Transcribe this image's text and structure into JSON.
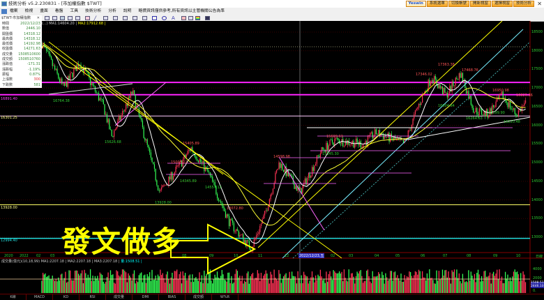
{
  "window": {
    "title": "技術分析 v5.2.230831 - [市加權指數 $TWT]",
    "close": "✕"
  },
  "top_buttons": [
    "Yeswin",
    "系統選單",
    "切換帳號",
    "開新視窗",
    "選擇視窗",
    "技術分析"
  ],
  "menu": [
    "檔案",
    "檢視",
    "畫面",
    "看盤",
    "工具",
    "技術分析",
    "分析",
    "說明",
    "略價資訊僅供參考,所有資訊以主管機關公告為準"
  ],
  "panel_tab": {
    "label": "$TWT-市加權指數",
    "close": "✕"
  },
  "info": [
    {
      "label": "時間",
      "value": "2022/12/23"
    },
    {
      "label": "數值",
      "value": "2446.10"
    },
    {
      "label": "開盤價",
      "value": "14318.12"
    },
    {
      "label": "最高價",
      "value": "14318.12"
    },
    {
      "label": "最低價",
      "value": "14192.98"
    },
    {
      "label": "收盤價",
      "value": "14271.63"
    },
    {
      "label": "成交量",
      "value": "1508510600"
    },
    {
      "label": "成交額",
      "value": "1508510760"
    },
    {
      "label": "漲跌值",
      "value": "-171.31"
    },
    {
      "label": "漲跌幅",
      "value": "-1.19%"
    },
    {
      "label": "振幅",
      "value": "0.87%"
    },
    {
      "label": "上漲數",
      "value": "300"
    },
    {
      "label": "下跌數",
      "value": "581"
    }
  ],
  "legend": {
    "prefix": "(...)",
    "ma1": "MA1:14604.20 |",
    "ma2": "MA2:17912.68 |"
  },
  "annotation_text": "發文做多",
  "price_axis": [
    "18500",
    "18000",
    "17500",
    "17000",
    "16500",
    "16000",
    "15500",
    "15000",
    "14500",
    "14000",
    "13500",
    "13000"
  ],
  "level_labels": [
    "16891.40",
    "16301.25",
    "13928.00",
    "12994.40"
  ],
  "x_axis": [
    "2020",
    "2022",
    "02",
    "03",
    "08",
    "09",
    "10",
    "11",
    "12",
    "02",
    "03",
    "04",
    "05",
    "06",
    "07",
    "08",
    "09",
    "10",
    "日線"
  ],
  "cursor_date": "2022/12/23,五",
  "price_labels": [
    "16764.38",
    "15626.68",
    "15405.89",
    "15005.22",
    "14345.89",
    "14557.12",
    "13928.00",
    "13072.80",
    "14598.98",
    "15609.63",
    "15345.30",
    "17346.02",
    "17363.38",
    "17468.76",
    "16950.98",
    "16825.86",
    "16264.63",
    "16199.90",
    "16220.48",
    "16004.84"
  ],
  "volume": {
    "legend": "成交量(億元)(10,18,99) MA1:2207.18 | MA2:2207.18 | MA3:2207.18 |",
    "qty": "量:1508.51 |",
    "axis": [
      "4000",
      "2000",
      "0."
    ],
    "box": "1508.51 2446.10"
  },
  "bottom_tabs": [
    "K線",
    "MACD",
    "KD",
    "RSI",
    "成交量",
    "DMI",
    "BIAS",
    "成交額",
    "W%R"
  ],
  "colors": {
    "up": "#ff3355",
    "down": "#33ff55",
    "ma_short": "#ffffff",
    "ma_long": "#ffff33",
    "level_magenta": "#ff22ff",
    "level_cyan": "#22dddd",
    "level_yellow": "#ffff66"
  },
  "chart_data": {
    "type": "candlestick",
    "ylim": [
      12600,
      18700
    ],
    "approx_price_path": [
      [
        "2022-02-04",
        18200
      ],
      [
        "2022-03-01",
        17000
      ],
      [
        "2022-03-21",
        17700
      ],
      [
        "2022-04-21",
        16500
      ],
      [
        "2022-05-01",
        15700
      ],
      [
        "2022-05-27",
        16900
      ],
      [
        "2022-07-01",
        14200
      ],
      [
        "2022-07-28",
        15000
      ],
      [
        "2022-08-10",
        15400
      ],
      [
        "2022-09-02",
        14700
      ],
      [
        "2022-09-28",
        13400
      ],
      [
        "2022-10-25",
        12700
      ],
      [
        "2022-11-12",
        13600
      ],
      [
        "2022-11-30",
        15000
      ],
      [
        "2022-12-26",
        14200
      ],
      [
        "2023-01-22",
        15300
      ],
      [
        "2023-02-09",
        15600
      ],
      [
        "2023-03-14",
        15500
      ],
      [
        "2023-04-01",
        15800
      ],
      [
        "2023-05-06",
        15500
      ],
      [
        "2023-05-23",
        16500
      ],
      [
        "2023-06-10",
        17300
      ],
      [
        "2023-06-28",
        16800
      ],
      [
        "2023-07-16",
        17400
      ],
      [
        "2023-08-03",
        16400
      ],
      [
        "2023-08-20",
        16300
      ],
      [
        "2023-09-08",
        16800
      ],
      [
        "2023-09-25",
        16300
      ],
      [
        "2023-10-08",
        16600
      ]
    ],
    "levels": [
      17150,
      16820,
      16250,
      13870,
      12970
    ]
  }
}
